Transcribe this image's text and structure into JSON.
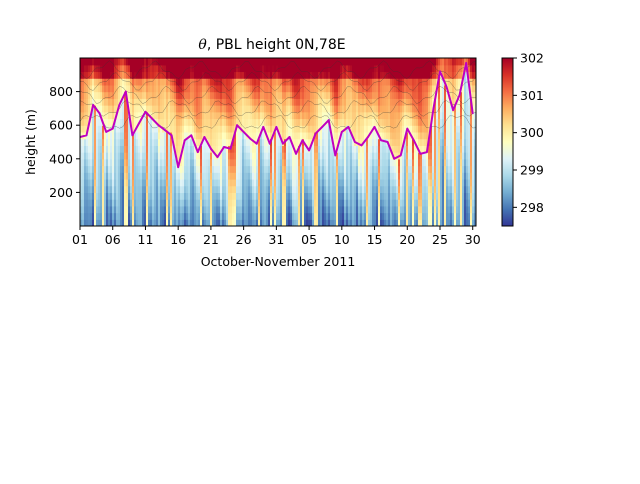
{
  "chart_data": {
    "type": "heatmap",
    "title_symbol": "θ",
    "title_text": ",  PBL height 0N,78E",
    "xlabel": "October-November 2011",
    "ylabel": "height (m)",
    "x_start_date": "2011-10-01",
    "x_end_date": "2011-11-30",
    "xlim_days": [
      0,
      60.5
    ],
    "ylim": [
      0,
      1000
    ],
    "x_ticks": [
      {
        "day": 0,
        "label": "01"
      },
      {
        "day": 5,
        "label": "06"
      },
      {
        "day": 10,
        "label": "11"
      },
      {
        "day": 15,
        "label": "16"
      },
      {
        "day": 20,
        "label": "21"
      },
      {
        "day": 25,
        "label": "26"
      },
      {
        "day": 30,
        "label": "31"
      },
      {
        "day": 35,
        "label": "05"
      },
      {
        "day": 40,
        "label": "10"
      },
      {
        "day": 45,
        "label": "15"
      },
      {
        "day": 50,
        "label": "20"
      },
      {
        "day": 55,
        "label": "25"
      },
      {
        "day": 60,
        "label": "30"
      }
    ],
    "y_ticks": [
      200,
      400,
      600,
      800
    ],
    "colorbar": {
      "colormap": "RdYlBu_r",
      "range": [
        297.5,
        302
      ],
      "ticks": [
        298,
        299,
        300,
        301,
        302
      ],
      "colors": [
        "#313695",
        "#4575b4",
        "#74add1",
        "#abd9e9",
        "#e0f3f8",
        "#ffffbf",
        "#fee090",
        "#fdae61",
        "#f46d43",
        "#d73027",
        "#a50026"
      ]
    },
    "series": [
      {
        "kind": "line",
        "color": "#c000c0",
        "x": [
          0,
          1,
          2,
          3,
          4,
          5,
          6,
          7,
          8,
          9,
          10,
          11,
          12,
          13,
          14,
          15,
          16,
          17,
          18,
          19,
          20,
          21,
          22,
          23,
          24,
          25,
          26,
          27,
          28,
          29,
          30,
          31,
          32,
          33,
          34,
          35,
          36,
          37,
          38,
          39,
          40,
          41,
          42,
          43,
          44,
          45,
          46,
          47,
          48,
          49,
          50,
          51,
          52,
          53,
          54,
          55,
          56,
          57,
          58,
          59,
          60
        ],
        "y": [
          530,
          540,
          720,
          670,
          560,
          580,
          720,
          800,
          540,
          610,
          680,
          640,
          600,
          570,
          540,
          350,
          510,
          540,
          440,
          530,
          460,
          410,
          470,
          460,
          600,
          560,
          520,
          490,
          590,
          490,
          590,
          490,
          530,
          430,
          510,
          450,
          550,
          590,
          630,
          420,
          560,
          590,
          500,
          480,
          530,
          590,
          510,
          500,
          400,
          420,
          580,
          510,
          430,
          440,
          700,
          920,
          830,
          690,
          780,
          970,
          670
        ]
      }
    ]
  }
}
